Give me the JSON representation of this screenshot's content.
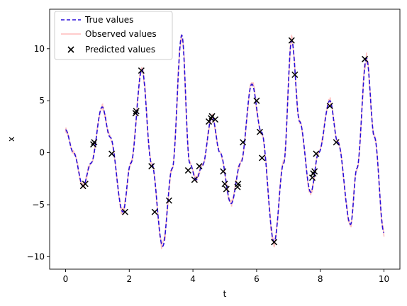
{
  "chart_data": {
    "type": "line",
    "xlabel": "t",
    "ylabel": "x",
    "xlim": [
      -0.5,
      10.5
    ],
    "ylim": [
      -11.2,
      13.8
    ],
    "xticks": [
      0,
      2,
      4,
      6,
      8,
      10
    ],
    "yticks": [
      -10,
      -5,
      0,
      5,
      10
    ],
    "grid": false,
    "legend_position": "top-left",
    "colors": {
      "true": "#2a0fd8",
      "observed": "#ff8f8f",
      "predicted": "#000000"
    },
    "legend": [
      {
        "label": "True values",
        "style": "dashed"
      },
      {
        "label": "Observed values",
        "style": "line"
      },
      {
        "label": "Predicted values",
        "style": "marker-x"
      }
    ],
    "true_curve_keypoints": [
      [
        0.0,
        2.2
      ],
      [
        0.25,
        0.0
      ],
      [
        0.55,
        -3.2
      ],
      [
        0.8,
        -1.0
      ],
      [
        1.15,
        4.4
      ],
      [
        1.4,
        1.5
      ],
      [
        1.8,
        -5.7
      ],
      [
        2.05,
        -1.0
      ],
      [
        2.4,
        8.0
      ],
      [
        2.7,
        -1.0
      ],
      [
        3.05,
        -9.0
      ],
      [
        3.35,
        -1.5
      ],
      [
        3.65,
        11.3
      ],
      [
        3.9,
        -1.0
      ],
      [
        4.1,
        -2.6
      ],
      [
        4.3,
        -1.2
      ],
      [
        4.6,
        3.5
      ],
      [
        4.85,
        0.0
      ],
      [
        5.2,
        -4.9
      ],
      [
        5.5,
        -1.0
      ],
      [
        5.85,
        6.6
      ],
      [
        6.15,
        2.0
      ],
      [
        6.55,
        -8.6
      ],
      [
        6.85,
        -1.0
      ],
      [
        7.1,
        10.8
      ],
      [
        7.35,
        3.0
      ],
      [
        7.7,
        -3.8
      ],
      [
        7.95,
        0.0
      ],
      [
        8.3,
        5.0
      ],
      [
        8.55,
        1.0
      ],
      [
        8.95,
        -6.9
      ],
      [
        9.15,
        -1.5
      ],
      [
        9.45,
        9.1
      ],
      [
        9.7,
        1.5
      ],
      [
        10.0,
        -7.7
      ]
    ],
    "predicted_points": [
      [
        0.55,
        -3.2
      ],
      [
        0.62,
        -3.0
      ],
      [
        0.87,
        0.8
      ],
      [
        0.9,
        1.0
      ],
      [
        1.45,
        -0.1
      ],
      [
        1.87,
        -5.7
      ],
      [
        2.2,
        3.8
      ],
      [
        2.22,
        4.0
      ],
      [
        2.38,
        7.9
      ],
      [
        2.7,
        -1.3
      ],
      [
        2.8,
        -5.7
      ],
      [
        3.25,
        -4.6
      ],
      [
        3.85,
        -1.7
      ],
      [
        4.05,
        -2.6
      ],
      [
        4.2,
        -1.3
      ],
      [
        4.5,
        3.0
      ],
      [
        4.57,
        3.3
      ],
      [
        4.6,
        3.5
      ],
      [
        4.7,
        3.2
      ],
      [
        4.95,
        -1.8
      ],
      [
        5.0,
        -3.0
      ],
      [
        5.05,
        -3.5
      ],
      [
        5.4,
        -3.3
      ],
      [
        5.42,
        -3.0
      ],
      [
        5.57,
        1.0
      ],
      [
        6.0,
        5.0
      ],
      [
        6.1,
        2.0
      ],
      [
        6.17,
        -0.5
      ],
      [
        6.55,
        -8.6
      ],
      [
        7.1,
        10.8
      ],
      [
        7.2,
        7.5
      ],
      [
        7.75,
        -2.4
      ],
      [
        7.78,
        -2.0
      ],
      [
        7.82,
        -1.8
      ],
      [
        7.87,
        -0.1
      ],
      [
        8.3,
        4.5
      ],
      [
        8.5,
        1.0
      ],
      [
        9.4,
        9.0
      ]
    ]
  }
}
